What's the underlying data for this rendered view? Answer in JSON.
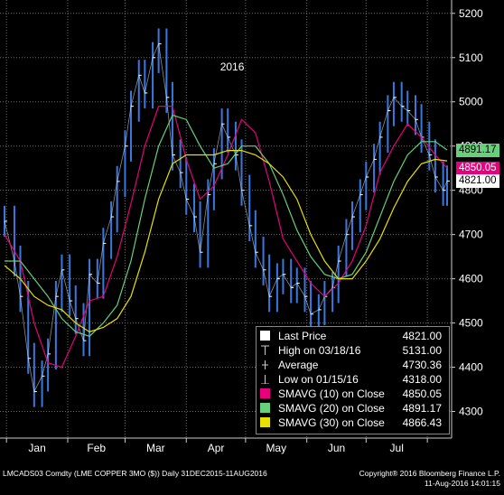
{
  "chart_data": {
    "type": "line",
    "title": "",
    "ylim": [
      4250,
      5220
    ],
    "y_ticks": [
      4300,
      4400,
      4500,
      4600,
      4700,
      4800,
      4900,
      5000,
      5100,
      5200
    ],
    "x_tick_labels": [
      "Jan",
      "Feb",
      "Mar",
      "Apr",
      "May",
      "Jun",
      "Jul"
    ],
    "year_label": "2016",
    "x_range": [
      "2015-12-31",
      "2016-08-11"
    ],
    "month_starts": [
      "2016-01-01",
      "2016-02-01",
      "2016-03-01",
      "2016-04-01",
      "2016-05-01",
      "2016-06-01",
      "2016-07-01",
      "2016-08-01"
    ],
    "grid": true,
    "series": [
      {
        "name": "Last Price",
        "color": "#3a78e0",
        "style": "bars",
        "x": [
          "2015-12-31",
          "2016-01-05",
          "2016-01-08",
          "2016-01-12",
          "2016-01-15",
          "2016-01-19",
          "2016-01-22",
          "2016-01-26",
          "2016-01-29",
          "2016-02-02",
          "2016-02-05",
          "2016-02-09",
          "2016-02-12",
          "2016-02-16",
          "2016-02-19",
          "2016-02-23",
          "2016-02-26",
          "2016-03-01",
          "2016-03-04",
          "2016-03-08",
          "2016-03-11",
          "2016-03-15",
          "2016-03-18",
          "2016-03-22",
          "2016-03-25",
          "2016-03-29",
          "2016-04-01",
          "2016-04-05",
          "2016-04-08",
          "2016-04-12",
          "2016-04-15",
          "2016-04-19",
          "2016-04-22",
          "2016-04-26",
          "2016-04-29",
          "2016-05-03",
          "2016-05-06",
          "2016-05-10",
          "2016-05-13",
          "2016-05-17",
          "2016-05-20",
          "2016-05-24",
          "2016-05-27",
          "2016-05-31",
          "2016-06-03",
          "2016-06-07",
          "2016-06-10",
          "2016-06-14",
          "2016-06-17",
          "2016-06-21",
          "2016-06-24",
          "2016-06-28",
          "2016-07-01",
          "2016-07-05",
          "2016-07-08",
          "2016-07-12",
          "2016-07-15",
          "2016-07-19",
          "2016-07-22",
          "2016-07-26",
          "2016-07-29",
          "2016-08-02",
          "2016-08-05",
          "2016-08-09",
          "2016-08-11"
        ],
        "values": [
          4730,
          4640,
          4560,
          4420,
          4345,
          4380,
          4430,
          4560,
          4620,
          4550,
          4510,
          4460,
          4610,
          4590,
          4680,
          4740,
          4820,
          4900,
          4990,
          5060,
          5020,
          5100,
          5131,
          5010,
          4880,
          4840,
          4780,
          4740,
          4660,
          4790,
          4860,
          4950,
          4920,
          4880,
          4800,
          4720,
          4660,
          4620,
          4560,
          4600,
          4610,
          4580,
          4590,
          4560,
          4520,
          4530,
          4560,
          4580,
          4640,
          4700,
          4740,
          4790,
          4830,
          4870,
          4920,
          4980,
          5010,
          4990,
          4980,
          4960,
          4920,
          4880,
          4830,
          4800,
          4821
        ]
      },
      {
        "name": "SMAVG (10) on Close",
        "color": "#e6007e",
        "x": [
          "2015-12-31",
          "2016-01-08",
          "2016-01-15",
          "2016-01-22",
          "2016-01-29",
          "2016-02-05",
          "2016-02-12",
          "2016-02-19",
          "2016-02-26",
          "2016-03-04",
          "2016-03-11",
          "2016-03-18",
          "2016-03-25",
          "2016-04-01",
          "2016-04-08",
          "2016-04-15",
          "2016-04-22",
          "2016-04-29",
          "2016-05-06",
          "2016-05-13",
          "2016-05-20",
          "2016-05-27",
          "2016-06-03",
          "2016-06-10",
          "2016-06-17",
          "2016-06-24",
          "2016-07-01",
          "2016-07-08",
          "2016-07-15",
          "2016-07-22",
          "2016-07-29",
          "2016-08-05",
          "2016-08-11"
        ],
        "values": [
          4700,
          4640,
          4500,
          4410,
          4400,
          4470,
          4550,
          4560,
          4650,
          4770,
          4900,
          4990,
          4990,
          4870,
          4780,
          4810,
          4880,
          4960,
          4930,
          4820,
          4690,
          4640,
          4590,
          4560,
          4590,
          4640,
          4720,
          4840,
          4900,
          4950,
          4920,
          4880,
          4850.05
        ]
      },
      {
        "name": "SMAVG (20) on Close",
        "color": "#66d07a",
        "x": [
          "2015-12-31",
          "2016-01-08",
          "2016-01-15",
          "2016-01-22",
          "2016-01-29",
          "2016-02-05",
          "2016-02-12",
          "2016-02-19",
          "2016-02-26",
          "2016-03-04",
          "2016-03-11",
          "2016-03-18",
          "2016-03-25",
          "2016-04-01",
          "2016-04-08",
          "2016-04-15",
          "2016-04-22",
          "2016-04-29",
          "2016-05-06",
          "2016-05-13",
          "2016-05-20",
          "2016-05-27",
          "2016-06-03",
          "2016-06-10",
          "2016-06-17",
          "2016-06-24",
          "2016-07-01",
          "2016-07-08",
          "2016-07-15",
          "2016-07-22",
          "2016-07-29",
          "2016-08-05",
          "2016-08-11"
        ],
        "values": [
          4640,
          4640,
          4600,
          4560,
          4510,
          4480,
          4470,
          4500,
          4540,
          4640,
          4780,
          4900,
          4970,
          4960,
          4900,
          4850,
          4860,
          4900,
          4900,
          4860,
          4790,
          4710,
          4650,
          4610,
          4600,
          4610,
          4660,
          4740,
          4820,
          4880,
          4910,
          4910,
          4891.17
        ]
      },
      {
        "name": "SMAVG (30) on Close",
        "color": "#e8e000",
        "x": [
          "2015-12-31",
          "2016-01-08",
          "2016-01-15",
          "2016-01-22",
          "2016-01-29",
          "2016-02-05",
          "2016-02-12",
          "2016-02-19",
          "2016-02-26",
          "2016-03-04",
          "2016-03-11",
          "2016-03-18",
          "2016-03-25",
          "2016-04-01",
          "2016-04-08",
          "2016-04-15",
          "2016-04-22",
          "2016-04-29",
          "2016-05-06",
          "2016-05-13",
          "2016-05-20",
          "2016-05-27",
          "2016-06-03",
          "2016-06-10",
          "2016-06-17",
          "2016-06-24",
          "2016-07-01",
          "2016-07-08",
          "2016-07-15",
          "2016-07-22",
          "2016-07-29",
          "2016-08-05",
          "2016-08-11"
        ],
        "values": [
          4630,
          4600,
          4560,
          4540,
          4530,
          4500,
          4480,
          4490,
          4510,
          4560,
          4660,
          4780,
          4860,
          4880,
          4880,
          4880,
          4890,
          4890,
          4880,
          4860,
          4830,
          4780,
          4700,
          4640,
          4600,
          4600,
          4640,
          4690,
          4760,
          4820,
          4860,
          4870,
          4866.43
        ]
      }
    ]
  },
  "legend": {
    "rows": [
      {
        "label": "Last Price",
        "value": "4821.00",
        "swatch": "white"
      },
      {
        "label": "High on 03/18/16",
        "value": "5131.00",
        "swatch": "high-marker"
      },
      {
        "label": "Average",
        "value": "4730.36",
        "swatch": "avg-marker"
      },
      {
        "label": "Low on 01/15/16",
        "value": "4318.00",
        "swatch": "low-marker"
      },
      {
        "label": "SMAVG (10) on Close",
        "value": "4850.05",
        "swatch": "#e6007e"
      },
      {
        "label": "SMAVG (20) on Close",
        "value": "4891.17",
        "swatch": "#66d07a"
      },
      {
        "label": "SMAVG (30) on Close",
        "value": "4866.43",
        "swatch": "#e8e000"
      }
    ]
  },
  "price_tags": [
    {
      "value": "4891.17",
      "bg": "#66d07a",
      "fg": "#000000"
    },
    {
      "value": "4850.05",
      "bg": "#e6007e",
      "fg": "#ffffff"
    },
    {
      "value": "4821.00",
      "bg": "#ffffff",
      "fg": "#000000"
    }
  ],
  "footer": {
    "left": "LMCADS03 Comdty (LME COPPER   3MO ($))  Daily 31DEC2015-11AUG2016",
    "right_line1": "Copyright® 2016 Bloomberg Finance L.P.",
    "right_line2": "11-Aug-2016 14:01:15"
  }
}
